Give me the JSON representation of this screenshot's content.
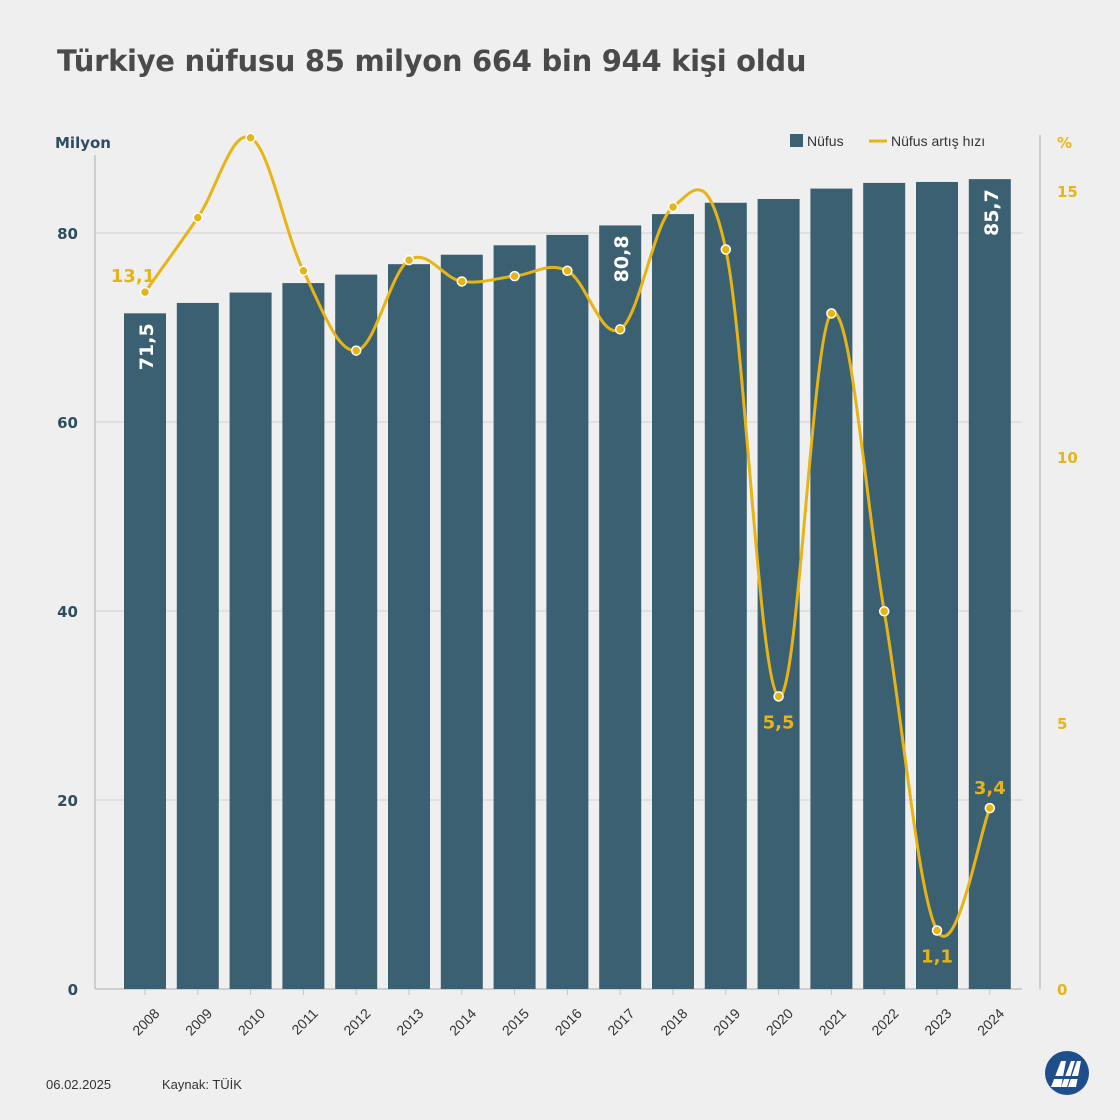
{
  "title": "Türkiye nüfusu 85 milyon 664 bin 944 kişi oldu",
  "footer": {
    "date": "06.02.2025",
    "source": "Kaynak: TÜİK"
  },
  "colors": {
    "bar": "#3a6072",
    "line": "#e7b416",
    "axis_left": "#2d4e5f",
    "grid": "#d0d0d0",
    "background": "#efefef"
  },
  "logo_icon": "aa-logo-icon",
  "chart_data": {
    "type": "bar",
    "title": "",
    "left_axis": {
      "label": "Milyon",
      "ylim": [
        0,
        90
      ],
      "ticks": [
        0,
        20,
        40,
        60,
        80
      ]
    },
    "right_axis": {
      "label": "%",
      "ylim": [
        0,
        15
      ],
      "ticks": [
        0,
        5,
        10,
        15
      ]
    },
    "legend": {
      "placement": "top-right",
      "items": [
        "Nüfus",
        "Nüfus artış hızı"
      ]
    },
    "grid": true,
    "categories": [
      "2008",
      "2009",
      "2010",
      "2011",
      "2012",
      "2013",
      "2014",
      "2015",
      "2016",
      "2017",
      "2018",
      "2019",
      "2020",
      "2021",
      "2022",
      "2023",
      "2024"
    ],
    "series": [
      {
        "name": "Nüfus",
        "type": "bar",
        "axis": "left",
        "values": [
          71.5,
          72.6,
          73.7,
          74.7,
          75.6,
          76.7,
          77.7,
          78.7,
          79.8,
          80.8,
          82.0,
          83.2,
          83.6,
          84.7,
          85.3,
          85.4,
          85.7
        ]
      },
      {
        "name": "Nüfus artış hızı",
        "type": "line",
        "axis": "right",
        "values": [
          13.1,
          14.5,
          16.0,
          13.5,
          12.0,
          13.7,
          13.3,
          13.4,
          13.5,
          12.4,
          14.7,
          13.9,
          5.5,
          12.7,
          7.1,
          1.1,
          3.4
        ]
      }
    ],
    "bar_labels": [
      {
        "index": 0,
        "text": "71,5"
      },
      {
        "index": 9,
        "text": "80,8"
      },
      {
        "index": 16,
        "text": "85,7"
      }
    ],
    "line_labels": [
      {
        "index": 0,
        "text": "13,1",
        "pos": "above-left"
      },
      {
        "index": 12,
        "text": "5,5",
        "pos": "below"
      },
      {
        "index": 15,
        "text": "1,1",
        "pos": "below"
      },
      {
        "index": 16,
        "text": "3,4",
        "pos": "above"
      }
    ]
  }
}
